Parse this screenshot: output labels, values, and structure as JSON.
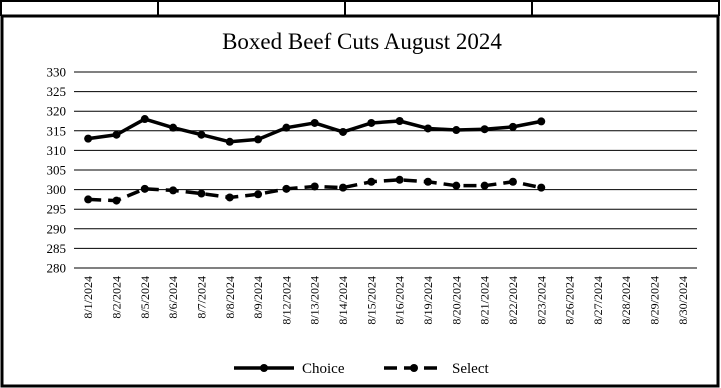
{
  "chart_data": {
    "type": "line",
    "title": "Boxed Beef Cuts August 2024",
    "xlabel": "",
    "ylabel": "",
    "ylim": [
      280,
      330
    ],
    "yticks": [
      280,
      285,
      290,
      295,
      300,
      305,
      310,
      315,
      320,
      325,
      330
    ],
    "grid": "horizontal",
    "legend_position": "bottom",
    "categories": [
      "8/1/2024",
      "8/2/2024",
      "8/5/2024",
      "8/6/2024",
      "8/7/2024",
      "8/8/2024",
      "8/9/2024",
      "8/12/2024",
      "8/13/2024",
      "8/14/2024",
      "8/15/2024",
      "8/16/2024",
      "8/19/2024",
      "8/20/2024",
      "8/21/2024",
      "8/22/2024",
      "8/23/2024",
      "8/26/2024",
      "8/27/2024",
      "8/28/2024",
      "8/29/2024",
      "8/30/2024"
    ],
    "series": [
      {
        "name": "Choice",
        "style": "solid",
        "values": [
          313.0,
          314.0,
          318.0,
          315.8,
          314.0,
          312.2,
          312.8,
          315.8,
          317.0,
          314.7,
          317.0,
          317.5,
          315.6,
          315.2,
          315.4,
          316.0,
          317.4,
          null,
          null,
          null,
          null,
          null
        ]
      },
      {
        "name": "Select",
        "style": "dashed",
        "values": [
          297.5,
          297.2,
          300.2,
          299.8,
          299.0,
          298.0,
          298.8,
          300.2,
          300.8,
          300.5,
          302.0,
          302.5,
          302.0,
          301.0,
          301.0,
          302.0,
          300.5,
          null,
          null,
          null,
          null,
          null
        ]
      }
    ],
    "line_color": "#000000"
  }
}
